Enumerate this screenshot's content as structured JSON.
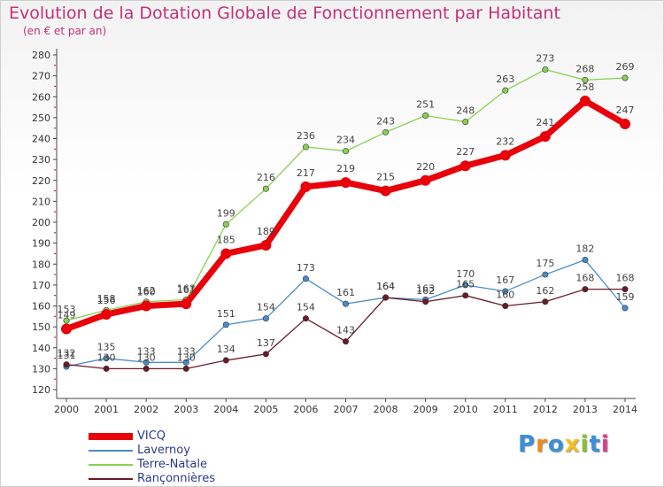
{
  "chart_data": {
    "type": "line",
    "title": "Evolution de la Dotation Globale de Fonctionnement par Habitant",
    "subtitle": "(en € et par an)",
    "x": [
      2000,
      2001,
      2002,
      2003,
      2004,
      2005,
      2006,
      2007,
      2008,
      2009,
      2010,
      2011,
      2012,
      2013,
      2014
    ],
    "ylim": [
      120,
      280
    ],
    "yticks": [
      120,
      130,
      140,
      150,
      160,
      170,
      180,
      190,
      200,
      210,
      220,
      230,
      240,
      250,
      260,
      270,
      280
    ],
    "grid": false,
    "legend_position": "bottom-left",
    "series": [
      {
        "name": "Terre-Natale",
        "color": "#88d052",
        "values": [
          153,
          158,
          162,
          163,
          199,
          216,
          236,
          234,
          243,
          251,
          248,
          263,
          273,
          268,
          269
        ]
      },
      {
        "name": "Lavernoy",
        "color": "#4a8cc8",
        "values": [
          131,
          135,
          133,
          133,
          151,
          154,
          173,
          161,
          164,
          163,
          170,
          167,
          175,
          182,
          159
        ]
      },
      {
        "name": "Rançonnières",
        "color": "#6a1a28",
        "values": [
          132,
          130,
          130,
          130,
          134,
          137,
          154,
          143,
          164,
          162,
          165,
          160,
          162,
          168,
          168
        ]
      },
      {
        "name": "VICQ",
        "color": "#e8000a",
        "values": [
          149,
          156,
          160,
          161,
          185,
          189,
          217,
          219,
          215,
          220,
          227,
          232,
          241,
          258,
          247
        ]
      }
    ],
    "legend_order": [
      "VICQ",
      "Lavernoy",
      "Terre-Natale",
      "Rançonnières"
    ]
  },
  "brand": {
    "letters": [
      {
        "char": "P",
        "color": "#3a8fd8"
      },
      {
        "char": "r",
        "color": "#f08a1c"
      },
      {
        "char": "o",
        "color": "#3a8fd8"
      },
      {
        "char": "x",
        "color": "#f0c020"
      },
      {
        "char": "i",
        "color": "#88c030"
      },
      {
        "char": "t",
        "color": "#3a8fd8"
      },
      {
        "char": "i",
        "color": "#e03a8a"
      }
    ]
  }
}
